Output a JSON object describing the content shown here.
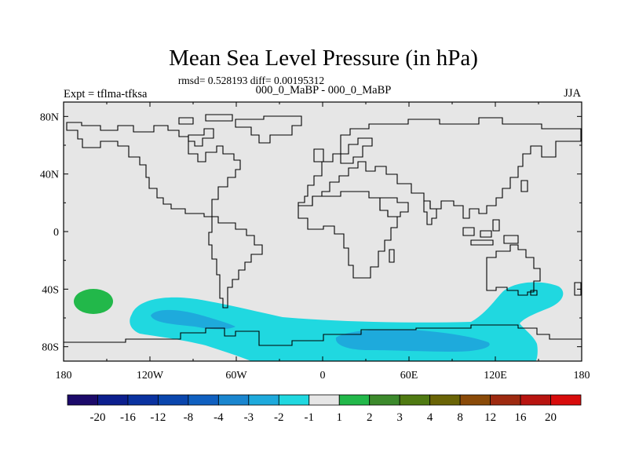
{
  "title": "Mean Sea Level Pressure (in hPa)",
  "stats_line": "rmsd= 0.528193 diff= 0.00195312",
  "experiment_label": "Expt = tflma-tfksa",
  "comparison_label": "000_0_MaBP - 000_0_MaBP",
  "season_label": "JJA",
  "lat_labels": [
    "80N",
    "40N",
    "0",
    "40S",
    "80S"
  ],
  "lat_values": [
    80,
    40,
    0,
    -40,
    -80
  ],
  "lon_labels": [
    "180",
    "120W",
    "60W",
    "0",
    "60E",
    "120E",
    "180"
  ],
  "lon_values": [
    -180,
    -120,
    -60,
    0,
    60,
    120,
    180
  ],
  "colorbar": {
    "levels": [
      "-20",
      "-16",
      "-12",
      "-8",
      "-4",
      "-3",
      "-2",
      "-1",
      "1",
      "2",
      "3",
      "4",
      "8",
      "12",
      "16",
      "20"
    ],
    "colors": [
      "#1c0a6a",
      "#0c1f8e",
      "#0a32a0",
      "#0a46ad",
      "#1060c0",
      "#1a86cf",
      "#1eaadc",
      "#20d8e0",
      "#e6e6e6",
      "#22b84a",
      "#3c8a2c",
      "#4f7a12",
      "#6a6406",
      "#8a4a08",
      "#9e2a10",
      "#b81410",
      "#d80c0c"
    ]
  },
  "colors": {
    "ocean_background": "#e6e6e6",
    "anomaly_minus1": "#20d8e0",
    "anomaly_minus2": "#1eaadc",
    "anomaly_plus1": "#22b84a",
    "coastline": "#000000"
  }
}
